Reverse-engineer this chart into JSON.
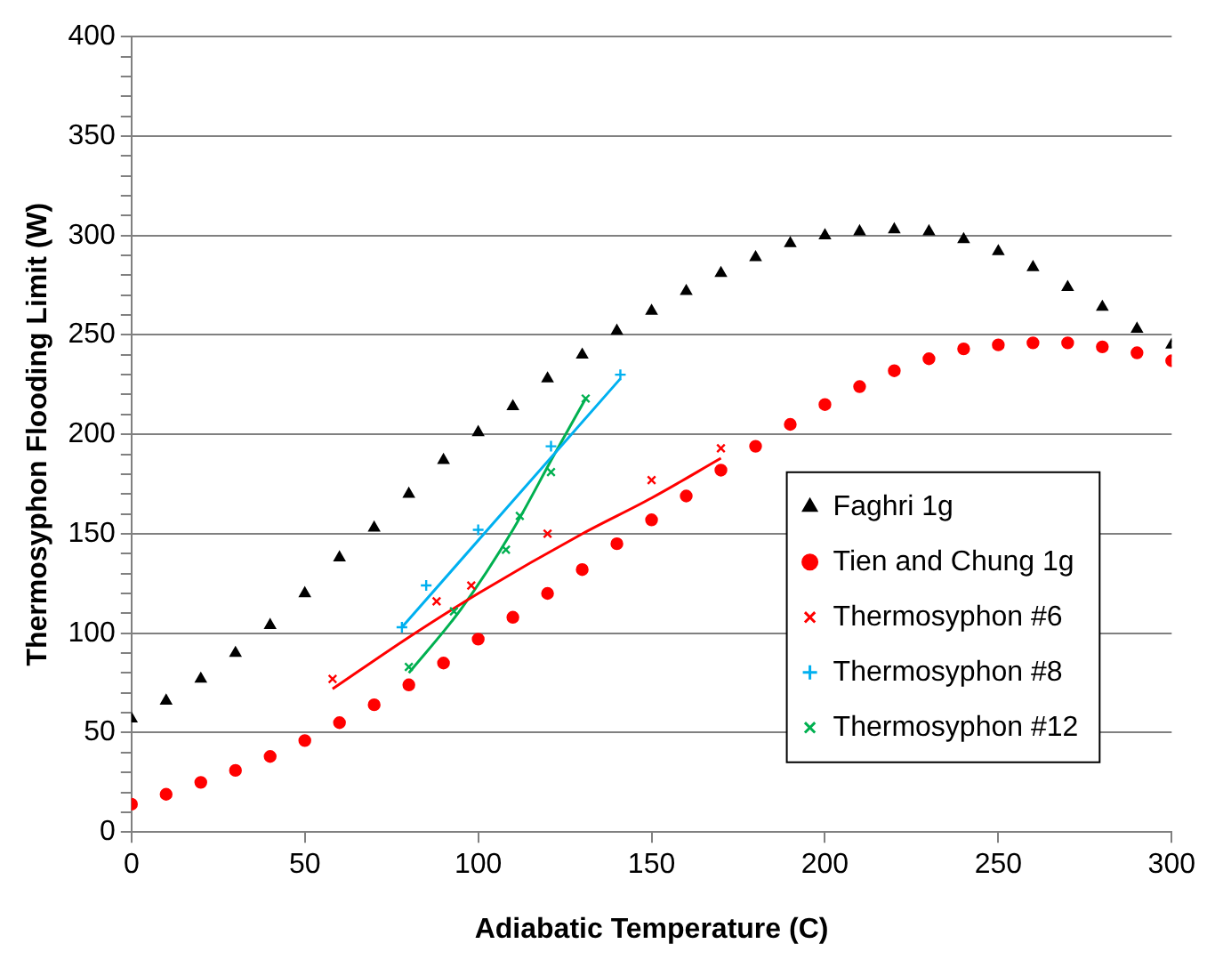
{
  "chart_data": {
    "type": "scatter",
    "xlabel": "Adiabatic Temperature (C)",
    "ylabel": "Thermosyphon Flooding Limit (W)",
    "xlim": [
      0,
      300
    ],
    "xticks": [
      0,
      50,
      100,
      150,
      200,
      250,
      300
    ],
    "ylim": [
      0,
      400
    ],
    "yticks": [
      0,
      {
        "value": 10,
        "label": null
      },
      {
        "value": 20,
        "label": null
      },
      {
        "value": 30,
        "label": null
      },
      {
        "value": 40,
        "label": null
      },
      50,
      {
        "value": 60,
        "label": null
      },
      {
        "value": 70,
        "label": null
      },
      {
        "value": 80,
        "label": null
      },
      {
        "value": 90,
        "label": null
      },
      100,
      {
        "value": 110,
        "label": null
      },
      {
        "value": 120,
        "label": null
      },
      {
        "value": 130,
        "label": null
      },
      {
        "value": 140,
        "label": null
      },
      150,
      {
        "value": 160,
        "label": null
      },
      {
        "value": 170,
        "label": null
      },
      {
        "value": 180,
        "label": null
      },
      {
        "value": 190,
        "label": null
      },
      200,
      {
        "value": 210,
        "label": null
      },
      {
        "value": 220,
        "label": null
      },
      {
        "value": 230,
        "label": null
      },
      {
        "value": 240,
        "label": null
      },
      250,
      {
        "value": 260,
        "label": null
      },
      {
        "value": 270,
        "label": null
      },
      {
        "value": 280,
        "label": null
      },
      {
        "value": 290,
        "label": null
      },
      300,
      {
        "value": 310,
        "label": null
      },
      {
        "value": 320,
        "label": null
      },
      {
        "value": 330,
        "label": null
      },
      {
        "value": 340,
        "label": null
      },
      350,
      {
        "value": 360,
        "label": null
      },
      {
        "value": 370,
        "label": null
      },
      {
        "value": 380,
        "label": null
      },
      {
        "value": 390,
        "label": null
      },
      400
    ],
    "grid": "y",
    "legend": "right",
    "series": [
      {
        "name": "Faghri 1g",
        "color": "#000000",
        "marker": "triangle",
        "x": [
          0,
          10,
          20,
          30,
          40,
          50,
          60,
          70,
          80,
          90,
          100,
          110,
          120,
          130,
          140,
          150,
          160,
          170,
          180,
          190,
          200,
          210,
          220,
          230,
          240,
          250,
          260,
          270,
          280,
          290,
          300
        ],
        "values": [
          57,
          66,
          77,
          90,
          104,
          120,
          138,
          153,
          170,
          187,
          201,
          214,
          228,
          240,
          252,
          262,
          272,
          281,
          289,
          296,
          300,
          302,
          303,
          302,
          298,
          292,
          284,
          274,
          264,
          253,
          245
        ]
      },
      {
        "name": "Tien and Chung 1g",
        "color": "#ff0000",
        "marker": "circle",
        "x": [
          0,
          10,
          20,
          30,
          40,
          50,
          60,
          70,
          80,
          90,
          100,
          110,
          120,
          130,
          140,
          150,
          160,
          170,
          180,
          190,
          200,
          210,
          220,
          230,
          240,
          250,
          260,
          270,
          280,
          290,
          300
        ],
        "values": [
          14,
          19,
          25,
          31,
          38,
          46,
          55,
          64,
          74,
          85,
          97,
          108,
          120,
          132,
          145,
          157,
          169,
          182,
          194,
          205,
          215,
          224,
          232,
          238,
          243,
          245,
          246,
          246,
          244,
          241,
          237
        ]
      },
      {
        "name": "Thermosyphon #6",
        "color": "#ff0000",
        "marker": "cross",
        "x": [
          58,
          88,
          98,
          120,
          150,
          170
        ],
        "values": [
          77,
          116,
          124,
          150,
          177,
          193
        ]
      },
      {
        "name": "Thermosyphon #8",
        "color": "#00b0f0",
        "marker": "plus",
        "x": [
          78,
          85,
          100,
          121,
          141
        ],
        "values": [
          103,
          124,
          152,
          194,
          230
        ]
      },
      {
        "name": "Thermosyphon #12",
        "color": "#00b050",
        "marker": "cross",
        "x": [
          80,
          93,
          108,
          112,
          121,
          131
        ],
        "values": [
          83,
          111,
          142,
          159,
          181,
          218
        ]
      },
      {
        "type": "line",
        "color": "#ff0000",
        "marker": "none",
        "x": [
          58,
          80,
          100,
          130,
          150,
          170
        ],
        "values": [
          72,
          98,
          120,
          150,
          168,
          188
        ]
      },
      {
        "type": "line",
        "color": "#00b0f0",
        "marker": "none",
        "x": [
          78,
          141
        ],
        "values": [
          103,
          228
        ]
      },
      {
        "type": "line",
        "color": "#00b050",
        "marker": "none",
        "x": [
          80,
          95,
          110,
          122,
          131
        ],
        "values": [
          80,
          112,
          152,
          190,
          218
        ]
      }
    ]
  }
}
